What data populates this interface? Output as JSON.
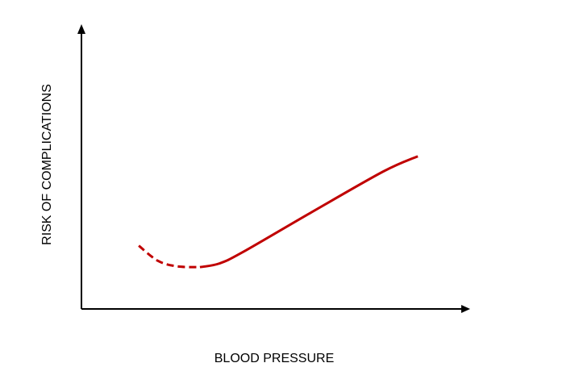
{
  "chart_data": {
    "type": "line",
    "title": "",
    "xlabel": "BLOOD PRESSURE",
    "ylabel": "RISK OF COMPLICATIONS",
    "xlim": [
      0,
      100
    ],
    "ylim": [
      0,
      100
    ],
    "grid": false,
    "legend": "none",
    "axis_ticks": false,
    "series": [
      {
        "style": "dashed",
        "color": "#c00000",
        "points": [
          {
            "x": 15,
            "y": 23
          },
          {
            "x": 20,
            "y": 17.5
          },
          {
            "x": 25,
            "y": 15.5
          },
          {
            "x": 31,
            "y": 15.2
          }
        ]
      },
      {
        "style": "solid",
        "color": "#c00000",
        "points": [
          {
            "x": 31,
            "y": 15.2
          },
          {
            "x": 36,
            "y": 16.5
          },
          {
            "x": 42,
            "y": 20.5
          },
          {
            "x": 60,
            "y": 35
          },
          {
            "x": 79,
            "y": 50
          },
          {
            "x": 88,
            "y": 55.5
          }
        ]
      }
    ]
  }
}
